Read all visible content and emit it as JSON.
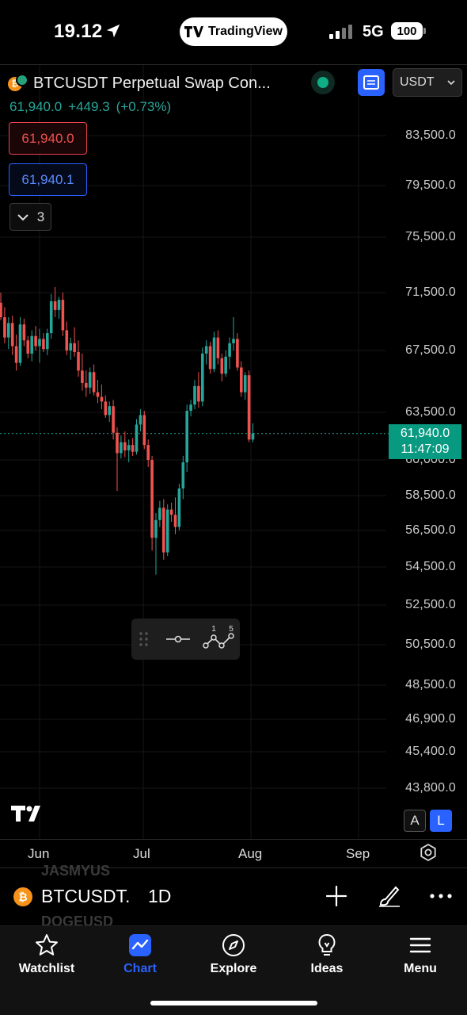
{
  "status_bar": {
    "time": "19.12",
    "app_pill": "TradingView",
    "network": "5G",
    "battery": "100"
  },
  "header": {
    "symbol_title": "BTCUSDT Perpetual Swap Con...",
    "currency": "USDT",
    "last_price": "61,940.0",
    "change_abs": "+449.3",
    "change_pct": "(+0.73%)",
    "bid": "61,940.0",
    "ask": "61,940.1",
    "indicators_count": "3"
  },
  "chart_data": {
    "type": "candlestick",
    "interval": "1D",
    "x_ticks": [
      "Jun",
      "Jul",
      "Aug",
      "Sep"
    ],
    "y_ticks": [
      "83,500.0",
      "79,500.0",
      "75,500.0",
      "71,500.0",
      "67,500.0",
      "63,500.0",
      "60,000.0",
      "58,500.0",
      "56,500.0",
      "54,500.0",
      "52,500.0",
      "50,500.0",
      "48,500.0",
      "46,900.0",
      "45,400.0",
      "43,800.0"
    ],
    "last_price_tag": "61,940.0",
    "countdown": "11:47:09",
    "up_color": "#26a69a",
    "down_color": "#ef5350",
    "candles": [
      [
        70800,
        71500,
        69600,
        69800
      ],
      [
        69800,
        70500,
        68000,
        68400
      ],
      [
        68400,
        69800,
        67600,
        69400
      ],
      [
        69400,
        69900,
        67200,
        67800
      ],
      [
        67800,
        68600,
        66200,
        66700
      ],
      [
        66700,
        69800,
        66500,
        69300
      ],
      [
        69300,
        69700,
        67800,
        68200
      ],
      [
        68200,
        68500,
        67000,
        67300
      ],
      [
        67300,
        68900,
        66800,
        68500
      ],
      [
        68500,
        69200,
        67500,
        67800
      ],
      [
        67800,
        69000,
        66700,
        68300
      ],
      [
        68300,
        68700,
        67400,
        67600
      ],
      [
        67600,
        69000,
        67200,
        68700
      ],
      [
        68700,
        71400,
        68300,
        70900
      ],
      [
        70900,
        71900,
        69800,
        70300
      ],
      [
        70300,
        71200,
        69700,
        71000
      ],
      [
        71000,
        71500,
        68500,
        68900
      ],
      [
        68900,
        69500,
        67200,
        67500
      ],
      [
        67500,
        68400,
        66900,
        68000
      ],
      [
        68000,
        69100,
        67100,
        67400
      ],
      [
        67400,
        68200,
        65800,
        66200
      ],
      [
        66200,
        67300,
        64900,
        65400
      ],
      [
        65400,
        66200,
        64500,
        65100
      ],
      [
        65100,
        66400,
        64700,
        66100
      ],
      [
        66100,
        66600,
        64600,
        64800
      ],
      [
        64800,
        65600,
        64100,
        64500
      ],
      [
        64500,
        65300,
        63700,
        64200
      ],
      [
        64200,
        64600,
        63100,
        63300
      ],
      [
        63300,
        64200,
        62800,
        63900
      ],
      [
        63900,
        64300,
        61500,
        62000
      ],
      [
        62000,
        62400,
        58700,
        60500
      ],
      [
        60500,
        61800,
        60100,
        61300
      ],
      [
        61300,
        62100,
        60200,
        60700
      ],
      [
        60700,
        61500,
        59900,
        61100
      ],
      [
        61100,
        61600,
        60300,
        60600
      ],
      [
        60600,
        63000,
        60400,
        62600
      ],
      [
        62600,
        63700,
        62100,
        63300
      ],
      [
        63300,
        63600,
        60800,
        61100
      ],
      [
        61100,
        61500,
        59700,
        60000
      ],
      [
        60000,
        60300,
        55400,
        56100
      ],
      [
        56100,
        57500,
        54100,
        57100
      ],
      [
        57100,
        58200,
        56700,
        57800
      ],
      [
        57800,
        58300,
        54900,
        55300
      ],
      [
        55300,
        58000,
        55100,
        57700
      ],
      [
        57700,
        58100,
        57000,
        57400
      ],
      [
        57400,
        58400,
        56300,
        56700
      ],
      [
        56700,
        59000,
        56500,
        58800
      ],
      [
        58800,
        60300,
        58300,
        59900
      ],
      [
        59900,
        64000,
        59500,
        63600
      ],
      [
        63600,
        64300,
        63200,
        64000
      ],
      [
        64000,
        65600,
        63700,
        65200
      ],
      [
        65200,
        66100,
        63800,
        64200
      ],
      [
        64200,
        67700,
        63900,
        67300
      ],
      [
        67300,
        68200,
        66600,
        67800
      ],
      [
        67800,
        68100,
        66000,
        66300
      ],
      [
        66300,
        68800,
        66100,
        68400
      ],
      [
        68400,
        68900,
        66600,
        67000
      ],
      [
        67000,
        67300,
        65500,
        66000
      ],
      [
        66000,
        67500,
        65800,
        67100
      ],
      [
        67100,
        68400,
        66300,
        68000
      ],
      [
        68000,
        69800,
        67500,
        68300
      ],
      [
        68300,
        68700,
        66200,
        66400
      ],
      [
        66400,
        66800,
        64500,
        64800
      ],
      [
        64800,
        66100,
        64300,
        65900
      ],
      [
        65900,
        66200,
        61300,
        61500
      ],
      [
        61500,
        62700,
        61300,
        61940
      ]
    ]
  },
  "toolbar": {
    "label_1": "1",
    "label_5": "5",
    "align_a": "A",
    "align_l": "L"
  },
  "symbol_strip": {
    "symbol": "BTCUSDT.",
    "interval": "1D",
    "ghost_above": "JASMYUS",
    "ghost_below": "DOGEUSD"
  },
  "tabs": [
    {
      "label": "Watchlist",
      "icon": "star-icon"
    },
    {
      "label": "Chart",
      "icon": "chart-icon"
    },
    {
      "label": "Explore",
      "icon": "compass-icon"
    },
    {
      "label": "Ideas",
      "icon": "lightbulb-icon"
    },
    {
      "label": "Menu",
      "icon": "hamburger-icon"
    }
  ]
}
